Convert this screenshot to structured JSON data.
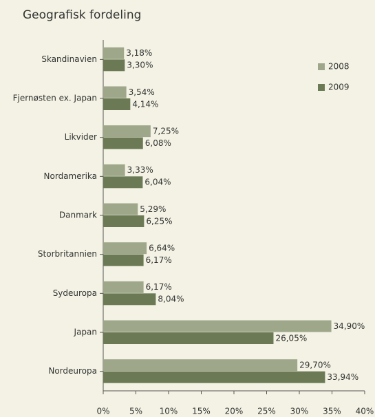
{
  "chart_data": {
    "type": "hbar",
    "title": "Geografisk fordeling",
    "categories": [
      "Skandinavien",
      "Fjernøsten ex. Japan",
      "Likvider",
      "Nordamerika",
      "Danmark",
      "Storbritannien",
      "Sydeuropa",
      "Japan",
      "Nordeuropa"
    ],
    "series": [
      {
        "name": "2008",
        "color": "#9ea78a",
        "values": [
          3.18,
          3.54,
          7.25,
          3.33,
          5.29,
          6.64,
          6.17,
          34.9,
          29.7
        ],
        "value_labels": [
          "3,18%",
          "3,54%",
          "7,25%",
          "3,33%",
          "5,29%",
          "6,64%",
          "6,17%",
          "34,90%",
          "29,70%"
        ]
      },
      {
        "name": "2009",
        "color": "#6b7a55",
        "values": [
          3.3,
          4.14,
          6.08,
          6.04,
          6.25,
          6.17,
          8.04,
          26.05,
          33.94
        ],
        "value_labels": [
          "3,30%",
          "4,14%",
          "6,08%",
          "6,04%",
          "6,25%",
          "6,17%",
          "8,04%",
          "26,05%",
          "33,94%"
        ]
      }
    ],
    "xlim": [
      0,
      40
    ],
    "xticks": [
      {
        "value": 0,
        "label": "0%"
      },
      {
        "value": 5,
        "label": "5%"
      },
      {
        "value": 10,
        "label": "10%"
      },
      {
        "value": 15,
        "label": "15%"
      },
      {
        "value": 20,
        "label": "20%"
      },
      {
        "value": 25,
        "label": "25%"
      },
      {
        "value": 30,
        "label": "30%"
      },
      {
        "value": 35,
        "label": "35%"
      },
      {
        "value": 40,
        "label": "40%"
      }
    ],
    "legend": "upper right"
  }
}
